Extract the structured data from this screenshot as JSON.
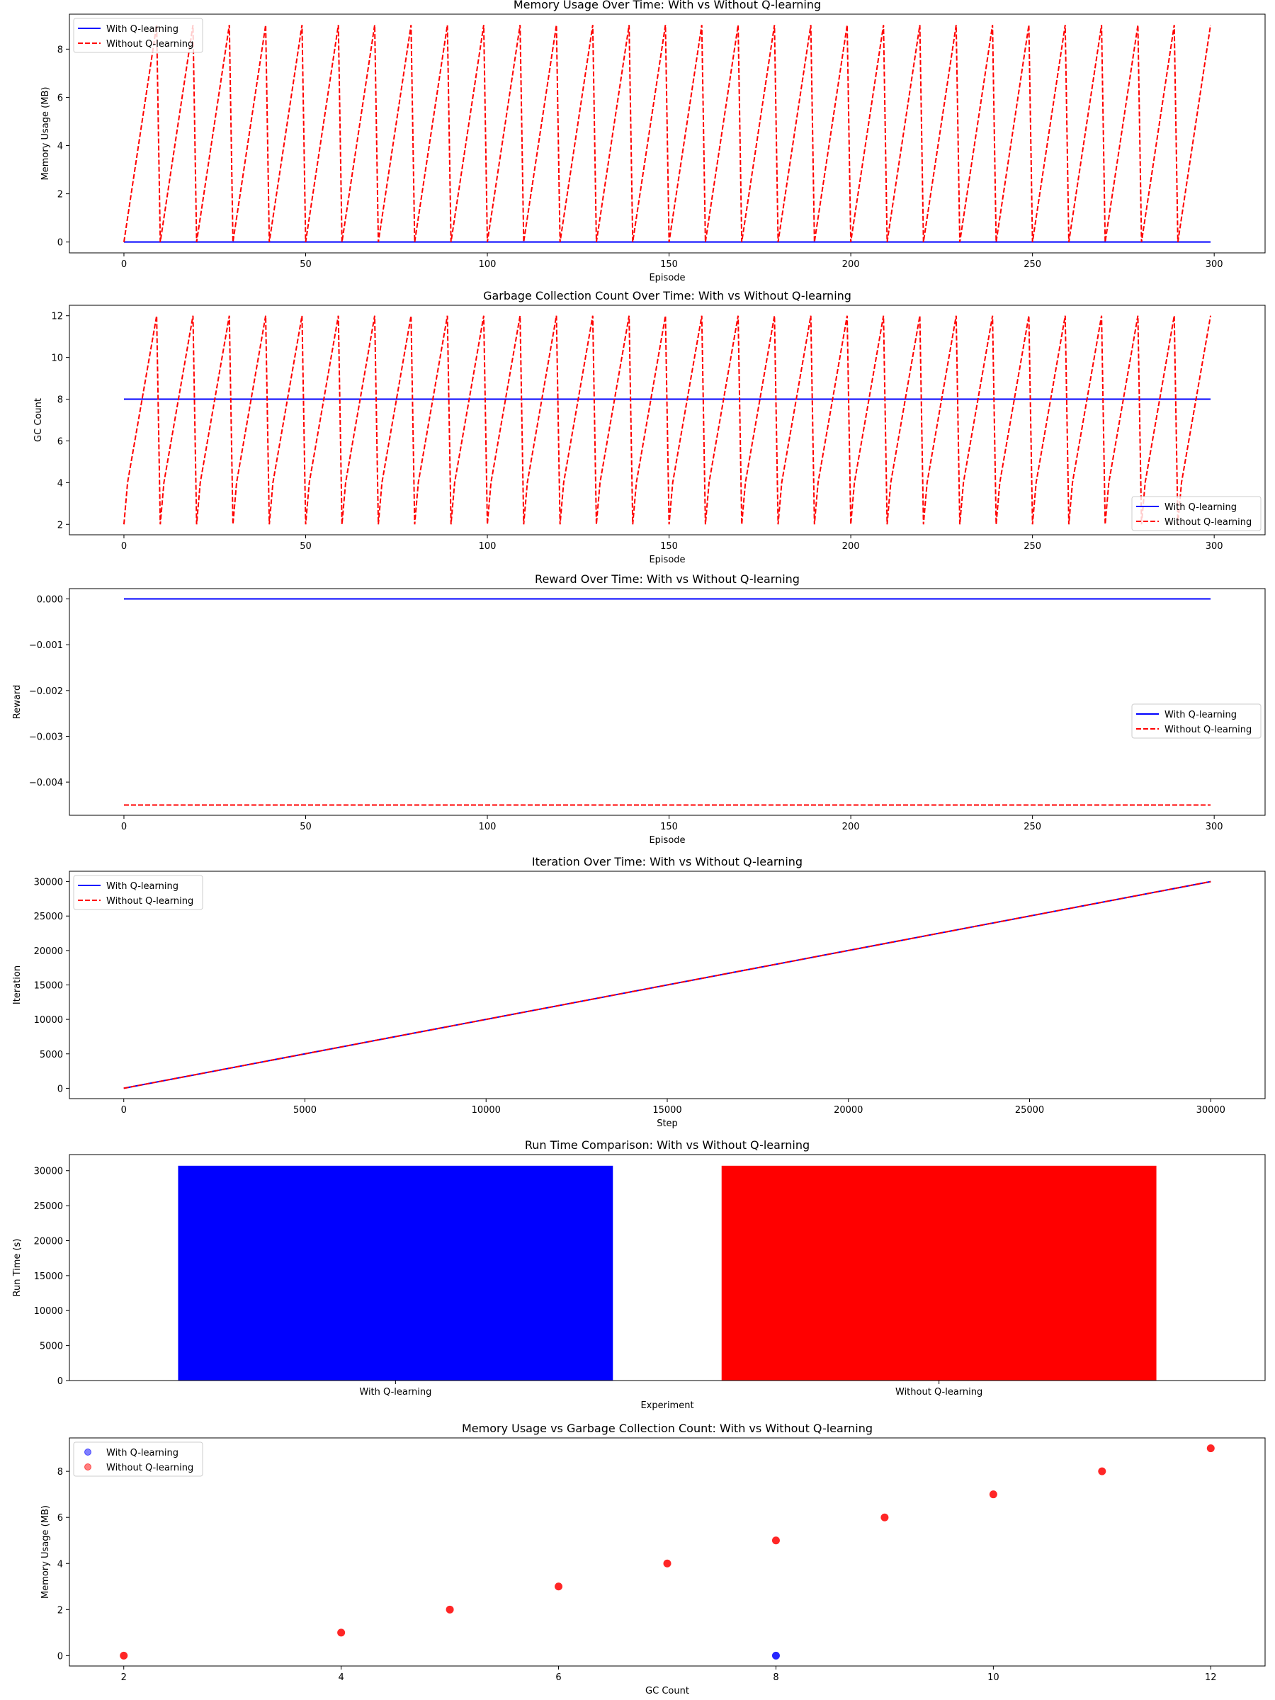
{
  "colors": {
    "with": "#0000ff",
    "without": "#ff0000"
  },
  "legend_labels": [
    "With Q-learning",
    "Without Q-learning"
  ],
  "chart_data": [
    {
      "type": "line",
      "title": "Memory Usage Over Time: With vs Without Q-learning",
      "xlabel": "Episode",
      "ylabel": "Memory Usage (MB)",
      "xlim": [
        -15,
        314
      ],
      "ylim": [
        -0.45,
        9.45
      ],
      "xticks": [
        0,
        50,
        100,
        150,
        200,
        250,
        300
      ],
      "yticks": [
        0,
        2,
        4,
        6,
        8
      ],
      "legend_position": "upper left",
      "grid": false,
      "series": [
        {
          "name": "With Q-learning",
          "style": "solid",
          "color": "#0000ff",
          "pattern": {
            "kind": "constant",
            "n": 300,
            "value": 0
          }
        },
        {
          "name": "Without Q-learning",
          "style": "dashed",
          "color": "#ff0000",
          "pattern": {
            "kind": "sawtooth",
            "n": 300,
            "period": 10,
            "values": [
              0,
              1,
              2,
              3,
              4,
              5,
              6,
              7,
              8,
              9
            ]
          }
        }
      ]
    },
    {
      "type": "line",
      "title": "Garbage Collection Count Over Time: With vs Without Q-learning",
      "xlabel": "Episode",
      "ylabel": "GC Count",
      "xlim": [
        -15,
        314
      ],
      "ylim": [
        1.5,
        12.5
      ],
      "xticks": [
        0,
        50,
        100,
        150,
        200,
        250,
        300
      ],
      "yticks": [
        2,
        4,
        6,
        8,
        10,
        12
      ],
      "legend_position": "lower right",
      "grid": false,
      "series": [
        {
          "name": "With Q-learning",
          "style": "solid",
          "color": "#0000ff",
          "pattern": {
            "kind": "constant",
            "n": 300,
            "value": 8
          }
        },
        {
          "name": "Without Q-learning",
          "style": "dashed",
          "color": "#ff0000",
          "pattern": {
            "kind": "sawtooth",
            "n": 300,
            "period": 10,
            "values": [
              2,
              4,
              5,
              6,
              7,
              8,
              9,
              10,
              11,
              12
            ]
          }
        }
      ]
    },
    {
      "type": "line",
      "title": "Reward Over Time: With vs Without Q-learning",
      "xlabel": "Episode",
      "ylabel": "Reward",
      "xlim": [
        -15,
        314
      ],
      "ylim": [
        -0.004725,
        0.000225
      ],
      "xticks": [
        0,
        50,
        100,
        150,
        200,
        250,
        300
      ],
      "yticks": [
        0.0,
        -0.001,
        -0.002,
        -0.003,
        -0.004
      ],
      "ytick_labels": [
        "0.000",
        "−0.001",
        "−0.002",
        "−0.003",
        "−0.004"
      ],
      "legend_position": "center right",
      "grid": false,
      "series": [
        {
          "name": "With Q-learning",
          "style": "solid",
          "color": "#0000ff",
          "pattern": {
            "kind": "constant",
            "n": 300,
            "value": 0.0
          }
        },
        {
          "name": "Without Q-learning",
          "style": "dashed",
          "color": "#ff0000",
          "pattern": {
            "kind": "constant",
            "n": 300,
            "value": -0.0045
          }
        }
      ]
    },
    {
      "type": "line",
      "title": "Iteration Over Time: With vs Without Q-learning",
      "xlabel": "Step",
      "ylabel": "Iteration",
      "xlim": [
        -1500,
        31500
      ],
      "ylim": [
        -1500,
        31500
      ],
      "xticks": [
        0,
        5000,
        10000,
        15000,
        20000,
        25000,
        30000
      ],
      "yticks": [
        0,
        5000,
        10000,
        15000,
        20000,
        25000,
        30000
      ],
      "legend_position": "upper left",
      "grid": false,
      "series": [
        {
          "name": "With Q-learning",
          "style": "solid",
          "color": "#0000ff",
          "x": [
            0,
            30000
          ],
          "y": [
            0,
            30000
          ]
        },
        {
          "name": "Without Q-learning",
          "style": "dashed",
          "color": "#ff0000",
          "x": [
            0,
            30000
          ],
          "y": [
            0,
            30000
          ]
        }
      ]
    },
    {
      "type": "bar",
      "title": "Run Time Comparison: With vs Without Q-learning",
      "xlabel": "Experiment",
      "ylabel": "Run Time (s)",
      "categories": [
        "With Q-learning",
        "Without Q-learning"
      ],
      "values": [
        30700,
        30700
      ],
      "colors": [
        "#0000ff",
        "#ff0000"
      ],
      "ylim": [
        0,
        32300
      ],
      "yticks": [
        0,
        5000,
        10000,
        15000,
        20000,
        25000,
        30000
      ],
      "grid": false
    },
    {
      "type": "scatter",
      "title": "Memory Usage vs Garbage Collection Count: With vs Without Q-learning",
      "xlabel": "GC Count",
      "ylabel": "Memory Usage (MB)",
      "xlim": [
        1.5,
        12.5
      ],
      "ylim": [
        -0.45,
        9.45
      ],
      "xticks": [
        2,
        4,
        6,
        8,
        10,
        12
      ],
      "yticks": [
        0,
        2,
        4,
        6,
        8
      ],
      "legend_position": "upper left",
      "grid": false,
      "series": [
        {
          "name": "With Q-learning",
          "color": "#0000ff",
          "x": [
            8
          ],
          "y": [
            0
          ]
        },
        {
          "name": "Without Q-learning",
          "color": "#ff0000",
          "x": [
            2,
            4,
            5,
            6,
            7,
            8,
            9,
            10,
            11,
            12
          ],
          "y": [
            0,
            1,
            2,
            3,
            4,
            5,
            6,
            7,
            8,
            9
          ]
        }
      ]
    }
  ]
}
